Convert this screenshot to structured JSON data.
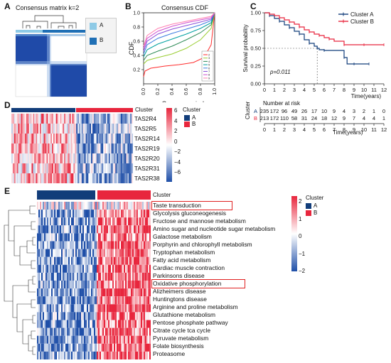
{
  "panels": {
    "A": "A",
    "B": "B",
    "C": "C",
    "D": "D",
    "E": "E"
  },
  "colors": {
    "clusterA": "#123d7a",
    "clusterB": "#e8263d",
    "heatHigh": "#e8263d",
    "heatLow": "#1f4fa8"
  },
  "panelA": {
    "title": "Consensus matrix k=2",
    "legend": [
      "A",
      "B"
    ],
    "legend_colors": [
      "#8ecae6",
      "#1f6fb5"
    ]
  },
  "panelB": {
    "chart_data": {
      "type": "line",
      "title": "Consensus CDF",
      "xlabel": "Consensus index",
      "ylabel": "CDF",
      "xlim": [
        0,
        1
      ],
      "ylim": [
        0,
        1
      ],
      "xticks": [
        "0.0",
        "0.2",
        "0.4",
        "0.6",
        "0.8",
        "1.0"
      ],
      "yticks": [
        "0.2",
        "0.4",
        "0.6",
        "0.8",
        "1.0"
      ],
      "legend": [
        "2",
        "3",
        "4",
        "5",
        "6",
        "7",
        "8",
        "9"
      ],
      "series": [
        {
          "name": "2",
          "color": "#ff2b2b",
          "points": [
            [
              0,
              0.1
            ],
            [
              0.02,
              0.18
            ],
            [
              0.1,
              0.22
            ],
            [
              0.3,
              0.25
            ],
            [
              0.5,
              0.27
            ],
            [
              0.7,
              0.3
            ],
            [
              0.85,
              0.37
            ],
            [
              0.95,
              0.55
            ],
            [
              1.0,
              1.0
            ]
          ]
        },
        {
          "name": "3",
          "color": "#9acd32",
          "points": [
            [
              0,
              0.28
            ],
            [
              0.05,
              0.33
            ],
            [
              0.2,
              0.37
            ],
            [
              0.4,
              0.42
            ],
            [
              0.6,
              0.5
            ],
            [
              0.8,
              0.62
            ],
            [
              0.95,
              0.78
            ],
            [
              1.0,
              1.0
            ]
          ]
        },
        {
          "name": "4",
          "color": "#2e8b57",
          "points": [
            [
              0,
              0.33
            ],
            [
              0.05,
              0.4
            ],
            [
              0.2,
              0.46
            ],
            [
              0.4,
              0.53
            ],
            [
              0.6,
              0.62
            ],
            [
              0.8,
              0.72
            ],
            [
              0.95,
              0.83
            ],
            [
              1.0,
              1.0
            ]
          ]
        },
        {
          "name": "5",
          "color": "#00a0a0",
          "points": [
            [
              0,
              0.38
            ],
            [
              0.05,
              0.48
            ],
            [
              0.2,
              0.56
            ],
            [
              0.4,
              0.63
            ],
            [
              0.6,
              0.7
            ],
            [
              0.8,
              0.78
            ],
            [
              0.95,
              0.86
            ],
            [
              1.0,
              1.0
            ]
          ]
        },
        {
          "name": "6",
          "color": "#3a7be0",
          "points": [
            [
              0,
              0.42
            ],
            [
              0.05,
              0.55
            ],
            [
              0.2,
              0.64
            ],
            [
              0.4,
              0.71
            ],
            [
              0.6,
              0.77
            ],
            [
              0.8,
              0.83
            ],
            [
              0.95,
              0.89
            ],
            [
              1.0,
              1.0
            ]
          ]
        },
        {
          "name": "7",
          "color": "#8a4fd8",
          "points": [
            [
              0,
              0.46
            ],
            [
              0.05,
              0.6
            ],
            [
              0.2,
              0.7
            ],
            [
              0.4,
              0.77
            ],
            [
              0.6,
              0.82
            ],
            [
              0.8,
              0.87
            ],
            [
              0.95,
              0.91
            ],
            [
              1.0,
              1.0
            ]
          ]
        },
        {
          "name": "8",
          "color": "#d04fd0",
          "points": [
            [
              0,
              0.5
            ],
            [
              0.05,
              0.64
            ],
            [
              0.2,
              0.74
            ],
            [
              0.4,
              0.81
            ],
            [
              0.6,
              0.86
            ],
            [
              0.8,
              0.9
            ],
            [
              0.95,
              0.93
            ],
            [
              1.0,
              1.0
            ]
          ]
        },
        {
          "name": "9",
          "color": "#ff7fb0",
          "points": [
            [
              0,
              0.53
            ],
            [
              0.05,
              0.68
            ],
            [
              0.2,
              0.78
            ],
            [
              0.4,
              0.84
            ],
            [
              0.6,
              0.88
            ],
            [
              0.8,
              0.92
            ],
            [
              0.95,
              0.95
            ],
            [
              1.0,
              1.0
            ]
          ]
        }
      ]
    }
  },
  "panelC": {
    "chart_data": {
      "type": "line",
      "xlabel": "Time(years)",
      "ylabel": "Survival probability",
      "xlim": [
        0,
        12
      ],
      "ylim": [
        0,
        1
      ],
      "xticks": [
        "0",
        "1",
        "2",
        "3",
        "4",
        "5",
        "6",
        "7",
        "8",
        "9",
        "10",
        "11",
        "12"
      ],
      "yticks": [
        "0.00",
        "0.25",
        "0.50",
        "0.75",
        "1.00"
      ],
      "annotation": "p=0.011",
      "legend": [
        "Cluster A",
        "Cluster B"
      ],
      "series": [
        {
          "name": "Cluster A",
          "color": "#123d7a",
          "points": [
            [
              0,
              1.0
            ],
            [
              0.5,
              0.96
            ],
            [
              1,
              0.92
            ],
            [
              1.5,
              0.88
            ],
            [
              2,
              0.83
            ],
            [
              2.5,
              0.79
            ],
            [
              3,
              0.74
            ],
            [
              3.5,
              0.7
            ],
            [
              4,
              0.62
            ],
            [
              4.5,
              0.57
            ],
            [
              5,
              0.53
            ],
            [
              5.3,
              0.5
            ],
            [
              5.5,
              0.48
            ],
            [
              6,
              0.47
            ],
            [
              7,
              0.47
            ],
            [
              8,
              0.37
            ],
            [
              8.3,
              0.28
            ],
            [
              9,
              0.28
            ],
            [
              10,
              0.28
            ],
            [
              10.5,
              0.28
            ]
          ]
        },
        {
          "name": "Cluster B",
          "color": "#e8263d",
          "points": [
            [
              0,
              1.0
            ],
            [
              0.5,
              0.98
            ],
            [
              1,
              0.96
            ],
            [
              1.5,
              0.93
            ],
            [
              2,
              0.9
            ],
            [
              2.5,
              0.87
            ],
            [
              3,
              0.84
            ],
            [
              3.5,
              0.8
            ],
            [
              4,
              0.76
            ],
            [
              4.5,
              0.73
            ],
            [
              5,
              0.7
            ],
            [
              5.5,
              0.68
            ],
            [
              6,
              0.65
            ],
            [
              6.5,
              0.63
            ],
            [
              7,
              0.6
            ],
            [
              8,
              0.55
            ],
            [
              9,
              0.55
            ],
            [
              10,
              0.55
            ],
            [
              11,
              0.55
            ],
            [
              12,
              0.55
            ]
          ]
        }
      ]
    },
    "risk_table": {
      "title": "Number at risk",
      "group_label": "Cluster",
      "rows": [
        {
          "name": "A",
          "values": [
            "235",
            "172",
            "96",
            "49",
            "26",
            "17",
            "10",
            "9",
            "4",
            "3",
            "2",
            "1",
            "0"
          ]
        },
        {
          "name": "B",
          "values": [
            "213",
            "172",
            "110",
            "58",
            "31",
            "24",
            "18",
            "12",
            "9",
            "7",
            "4",
            "4",
            "1"
          ]
        }
      ],
      "xticks": [
        "0",
        "1",
        "2",
        "3",
        "4",
        "5",
        "6",
        "7",
        "8",
        "9",
        "10",
        "11",
        "12"
      ],
      "xlabel": "Time(years)"
    }
  },
  "panelD": {
    "cluster_label": "Cluster",
    "genes": [
      "TAS2R4",
      "TAS2R5",
      "TAS2R14",
      "TAS2R19",
      "TAS2R20",
      "TAS2R31",
      "TAS2R38"
    ],
    "scale": [
      "6",
      "4",
      "2",
      "0",
      "−2",
      "−4",
      "−6"
    ],
    "legend_title": "Cluster",
    "legend": [
      "A",
      "B"
    ]
  },
  "panelE": {
    "cluster_label": "Cluster",
    "pathways": [
      "Taste transduction",
      "Glycolysis gluconeogenesis",
      "Fructose and mannose metabolism",
      "Amino sugar and nucleotide sugar metabolism",
      "Galactose metabolism",
      "Porphyrin and chlorophyll metabolism",
      "Tryptophan metabolism",
      "Fatty acid metabolism",
      "Cardiac muscle contraction",
      "Parkinsons disease",
      "Oxidative phosphorylation",
      "Alizheimers disease",
      "Huntingtons disease",
      "Arginine and proline metabolism",
      "Glutathione metabolism",
      "Pentose phosphate pathway",
      "Citrate cycle tca cycle",
      "Pyruvate metabolism",
      "Folate biosynthesis",
      "Proteasome"
    ],
    "scale": [
      "2",
      "1",
      "0",
      "−1",
      "−2"
    ],
    "legend_title": "Cluster",
    "legend": [
      "A",
      "B"
    ]
  }
}
